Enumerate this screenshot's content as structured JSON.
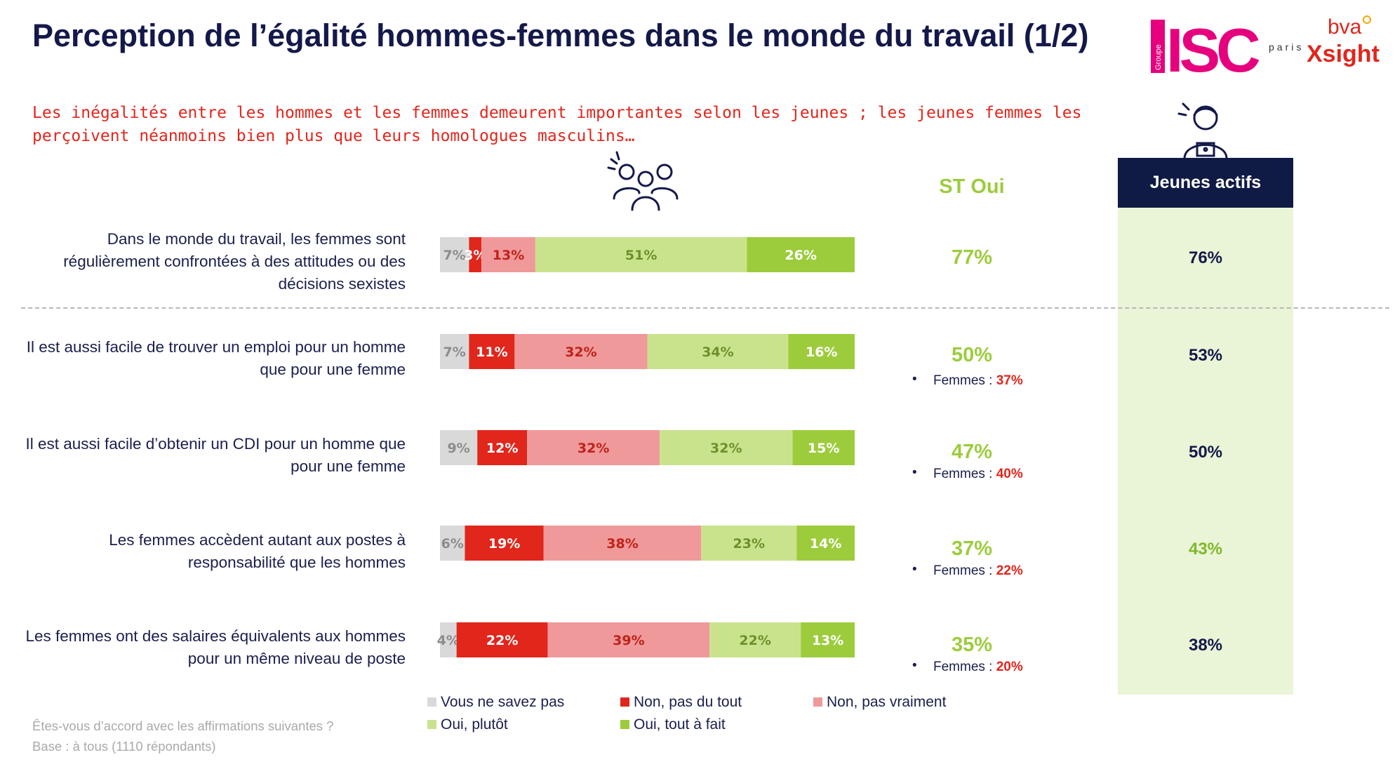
{
  "title": "Perception de l’égalité hommes-femmes dans le monde du travail (1/2)",
  "subtitle": "Les inégalités entre les hommes et les femmes demeurent importantes selon les jeunes ; les jeunes femmes les perçoivent néanmoins bien plus que leurs homologues masculins…",
  "logos": {
    "isc_group": "Groupe",
    "isc": "ISC",
    "isc_city": "paris",
    "bva_top": "bva",
    "bva_bottom": "Xsight"
  },
  "icons": {
    "people": "people-group-icon",
    "person": "person-laptop-icon"
  },
  "st_header": "ST Oui",
  "jeunes_header": "Jeunes actifs",
  "colors": {
    "nsp": "#d9d9d9",
    "non_tout": "#e1261c",
    "non_vraiment": "#f0999a",
    "oui_plutot": "#c9e38d",
    "oui_tout": "#9ccc3c",
    "navy": "#14194a",
    "red_text": "#e1261c",
    "green_text": "#9ccc3c",
    "panel": "#eaf4d6"
  },
  "chart_data": {
    "type": "bar",
    "orientation": "horizontal-stacked-100",
    "categories": [
      "Dans le monde du travail, les femmes sont régulièrement confrontées à des attitudes ou des décisions sexistes",
      "Il est aussi facile de trouver un emploi pour un homme que pour une femme",
      "Il est aussi facile d’obtenir un CDI pour un homme que pour une femme",
      "Les femmes accèdent autant aux postes à responsabilité que les hommes",
      "Les femmes ont des salaires équivalents aux hommes pour un même niveau de poste"
    ],
    "series": [
      {
        "name": "Vous ne savez pas",
        "color": "#d9d9d9",
        "label_color": "#8c8c8c",
        "values": [
          7,
          7,
          9,
          6,
          4
        ],
        "labels": [
          "7%",
          "7%",
          "9%",
          "6%",
          "4%"
        ]
      },
      {
        "name": "Non, pas du tout",
        "color": "#e1261c",
        "label_color": "#ffffff",
        "values": [
          3,
          11,
          12,
          19,
          22
        ],
        "labels": [
          "3%",
          "11%",
          "12%",
          "19%",
          "22%"
        ]
      },
      {
        "name": "Non, pas vraiment",
        "color": "#f0999a",
        "label_color": "#c0221a",
        "values": [
          13,
          32,
          32,
          38,
          39
        ],
        "labels": [
          "13%",
          "32%",
          "32%",
          "38%",
          "39%"
        ]
      },
      {
        "name": "Oui, plutôt",
        "color": "#c9e38d",
        "label_color": "#6f8f2a",
        "values": [
          51,
          34,
          32,
          23,
          22
        ],
        "labels": [
          "51%",
          "34%",
          "32%",
          "23%",
          "22%"
        ]
      },
      {
        "name": "Oui, tout à fait",
        "color": "#9ccc3c",
        "label_color": "#ffffff",
        "values": [
          26,
          16,
          15,
          14,
          13
        ],
        "labels": [
          "26%",
          "16%",
          "15%",
          "14%",
          "13%"
        ]
      }
    ]
  },
  "rows": [
    {
      "label": "Dans le monde du travail, les femmes sont régulièrement confrontées à des attitudes ou des décisions sexistes",
      "st_oui": "77%",
      "femmes_label": "",
      "femmes_value": "",
      "jeunes_actifs": "76%"
    },
    {
      "label": "Il est aussi facile de trouver un emploi pour un homme que pour une femme",
      "st_oui": "50%",
      "femmes_label": "Femmes :",
      "femmes_value": "37%",
      "jeunes_actifs": "53%"
    },
    {
      "label": "Il est aussi facile d’obtenir un CDI pour un homme que pour une femme",
      "st_oui": "47%",
      "femmes_label": "Femmes :",
      "femmes_value": "40%",
      "jeunes_actifs": "50%"
    },
    {
      "label": "Les femmes accèdent autant aux postes à responsabilité que les hommes",
      "st_oui": "37%",
      "femmes_label": "Femmes :",
      "femmes_value": "22%",
      "jeunes_actifs": "43%"
    },
    {
      "label": "Les femmes ont des salaires équivalents aux hommes pour un même niveau de poste",
      "st_oui": "35%",
      "femmes_label": "Femmes :",
      "femmes_value": "20%",
      "jeunes_actifs": "38%"
    }
  ],
  "bullet": "•",
  "legend": [
    {
      "label": "Vous ne savez pas",
      "color": "#d9d9d9"
    },
    {
      "label": "Non, pas du tout",
      "color": "#e1261c"
    },
    {
      "label": "Non, pas vraiment",
      "color": "#f0999a"
    },
    {
      "label": "Oui, plutôt",
      "color": "#c9e38d"
    },
    {
      "label": "Oui, tout à fait",
      "color": "#9ccc3c"
    }
  ],
  "footnotes": {
    "question": "Êtes-vous d’accord avec les affirmations suivantes ?",
    "base": "Base : à tous (1110 répondants)"
  }
}
